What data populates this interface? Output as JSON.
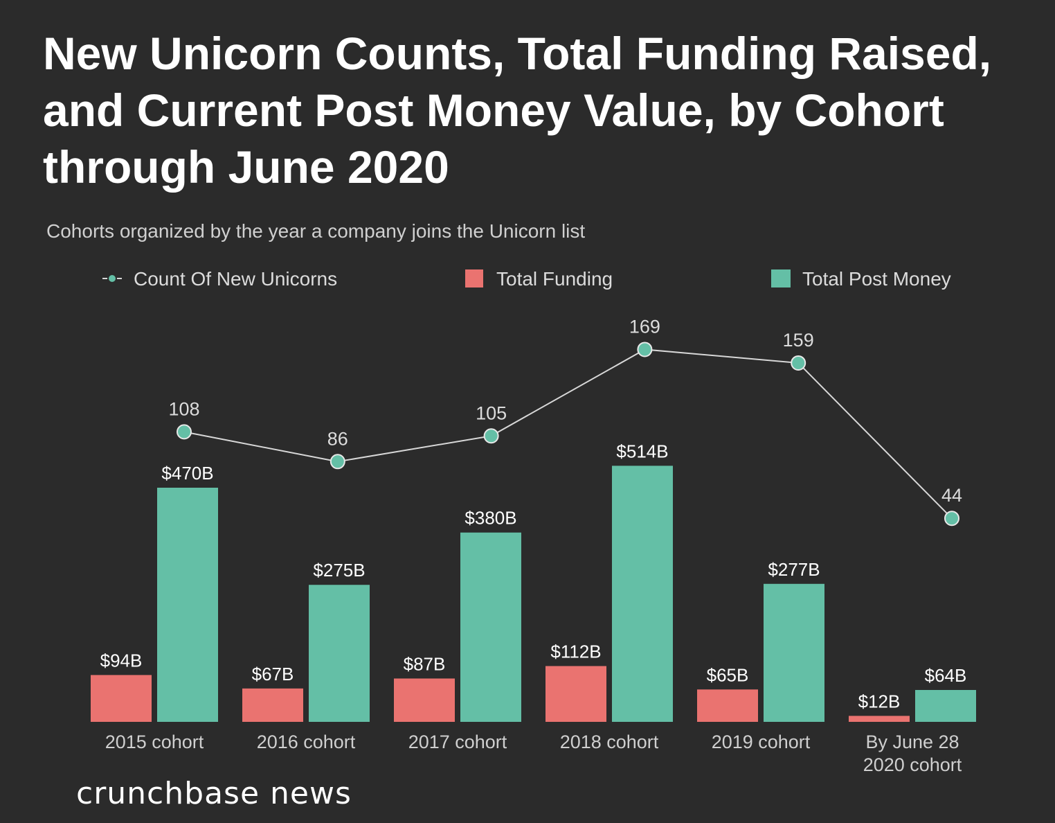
{
  "title": {
    "line1": "New Unicorn Counts, Total Funding Raised,",
    "line2": "and Current Post Money Value, by Cohort",
    "line3": "through June 2020"
  },
  "subtitle": "Cohorts organized by the year a company joins the Unicorn list",
  "brand": "crunchbase news",
  "colors": {
    "background": "#2b2b2b",
    "funding": "#ea7370",
    "post_money": "#64bfa6",
    "line": "#d8d8d8",
    "marker": "#64bfa6"
  },
  "chart_data": {
    "type": "bar",
    "categories": [
      [
        "2015 cohort"
      ],
      [
        "2016 cohort"
      ],
      [
        "2017 cohort"
      ],
      [
        "2018 cohort"
      ],
      [
        "2019 cohort"
      ],
      [
        "By June 28",
        "2020 cohort"
      ]
    ],
    "legend": [
      "Count Of New Unicorns",
      "Total Funding",
      "Total Post Money"
    ],
    "series": [
      {
        "name": "Total Funding",
        "type": "bar",
        "values": [
          94,
          67,
          87,
          112,
          65,
          12
        ],
        "labels": [
          "$94B",
          "$67B",
          "$87B",
          "$112B",
          "$65B",
          "$12B"
        ]
      },
      {
        "name": "Total Post Money",
        "type": "bar",
        "values": [
          470,
          275,
          380,
          514,
          277,
          64
        ],
        "labels": [
          "$470B",
          "$275B",
          "$380B",
          "$514B",
          "$277B",
          "$64B"
        ]
      },
      {
        "name": "Count Of New Unicorns",
        "type": "line",
        "values": [
          108,
          86,
          105,
          169,
          159,
          44
        ],
        "labels": [
          "108",
          "86",
          "105",
          "169",
          "159",
          "44"
        ]
      }
    ],
    "legend_position": "top",
    "grid": false
  }
}
